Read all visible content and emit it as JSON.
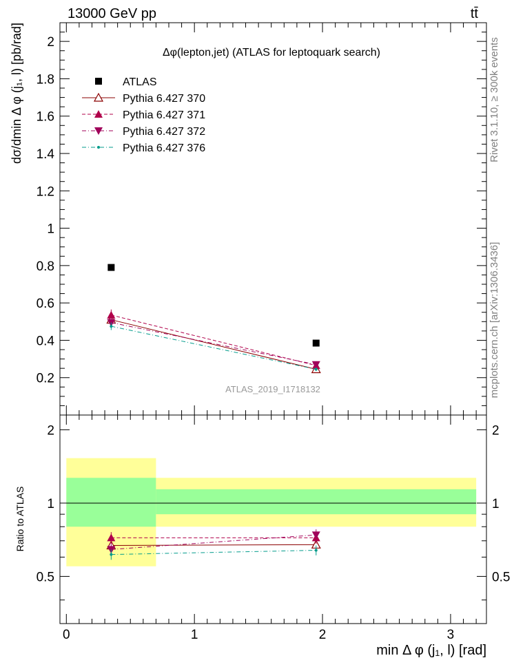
{
  "header": {
    "left": "13000 GeV pp",
    "right": "tt̄"
  },
  "side_labels": {
    "rivet": "Rivet 3.1.10, ≥ 300k events",
    "mcplots": "mcplots.cern.ch [arXiv:1306.3436]"
  },
  "chart_data": [
    {
      "type": "scatter",
      "title": "Δφ(lepton,jet) (ATLAS for leptoquark search)",
      "xlabel": "",
      "ylabel": "dσ/dmin Δ φ (j₁, l) [pb/rad]",
      "watermark": "ATLAS_2019_I1718132",
      "xlim": [
        -0.05,
        3.28
      ],
      "ylim": [
        0,
        2.1
      ],
      "yticks": [
        "0.2",
        "0.4",
        "0.6",
        "0.8",
        "1",
        "1.2",
        "1.4",
        "1.6",
        "1.8",
        "2"
      ],
      "legend": [
        {
          "name": "ATLAS",
          "color": "#000000",
          "marker": "square",
          "line": "none"
        },
        {
          "name": "Pythia 6.427 370",
          "color": "#8b0000",
          "marker": "triangle-up-open",
          "line": "solid"
        },
        {
          "name": "Pythia 6.427 371",
          "color": "#b0004a",
          "marker": "triangle-up",
          "line": "dashed"
        },
        {
          "name": "Pythia 6.427 372",
          "color": "#a0005a",
          "marker": "triangle-down",
          "line": "dashdot"
        },
        {
          "name": "Pythia 6.427 376",
          "color": "#009b8b",
          "marker": "dot",
          "line": "dashdot"
        }
      ],
      "series": [
        {
          "name": "ATLAS",
          "x": [
            0.35,
            1.95
          ],
          "y": [
            0.79,
            0.385
          ],
          "yerr": [
            0,
            0
          ]
        },
        {
          "name": "Pythia 6.427 370",
          "x": [
            0.35,
            1.95
          ],
          "y": [
            0.51,
            0.245
          ],
          "yerr": [
            0.02,
            0.01
          ]
        },
        {
          "name": "Pythia 6.427 371",
          "x": [
            0.35,
            1.95
          ],
          "y": [
            0.535,
            0.265
          ],
          "yerr": [
            0.03,
            0.015
          ]
        },
        {
          "name": "Pythia 6.427 372",
          "x": [
            0.35,
            1.95
          ],
          "y": [
            0.495,
            0.27
          ],
          "yerr": [
            0.025,
            0.015
          ]
        },
        {
          "name": "Pythia 6.427 376",
          "x": [
            0.35,
            1.95
          ],
          "y": [
            0.475,
            0.245
          ],
          "yerr": [
            0.02,
            0.01
          ]
        }
      ]
    },
    {
      "type": "scatter",
      "xlabel": "min Δ φ (j₁, l) [rad]",
      "ylabel": "Ratio to ATLAS",
      "xlim": [
        -0.05,
        3.28
      ],
      "ylim": [
        0.32,
        2.3
      ],
      "xticks": [
        "0",
        "1",
        "2",
        "3"
      ],
      "yticks": [
        "0.5",
        "1",
        "2"
      ],
      "bands": [
        {
          "x": [
            0,
            0.7
          ],
          "yellow": [
            0.55,
            1.53
          ],
          "green": [
            0.8,
            1.27
          ]
        },
        {
          "x": [
            0.7,
            3.2
          ],
          "yellow": [
            0.8,
            1.27
          ],
          "green": [
            0.9,
            1.14
          ]
        }
      ],
      "series": [
        {
          "name": "Pythia 6.427 370",
          "x": [
            0.35,
            1.95
          ],
          "y": [
            0.67,
            0.675
          ],
          "yerr": [
            0.03,
            0.03
          ]
        },
        {
          "name": "Pythia 6.427 371",
          "x": [
            0.35,
            1.95
          ],
          "y": [
            0.72,
            0.72
          ],
          "yerr": [
            0.04,
            0.04
          ]
        },
        {
          "name": "Pythia 6.427 372",
          "x": [
            0.35,
            1.95
          ],
          "y": [
            0.645,
            0.74
          ],
          "yerr": [
            0.035,
            0.04
          ]
        },
        {
          "name": "Pythia 6.427 376",
          "x": [
            0.35,
            1.95
          ],
          "y": [
            0.615,
            0.64
          ],
          "yerr": [
            0.03,
            0.03
          ]
        }
      ]
    }
  ]
}
